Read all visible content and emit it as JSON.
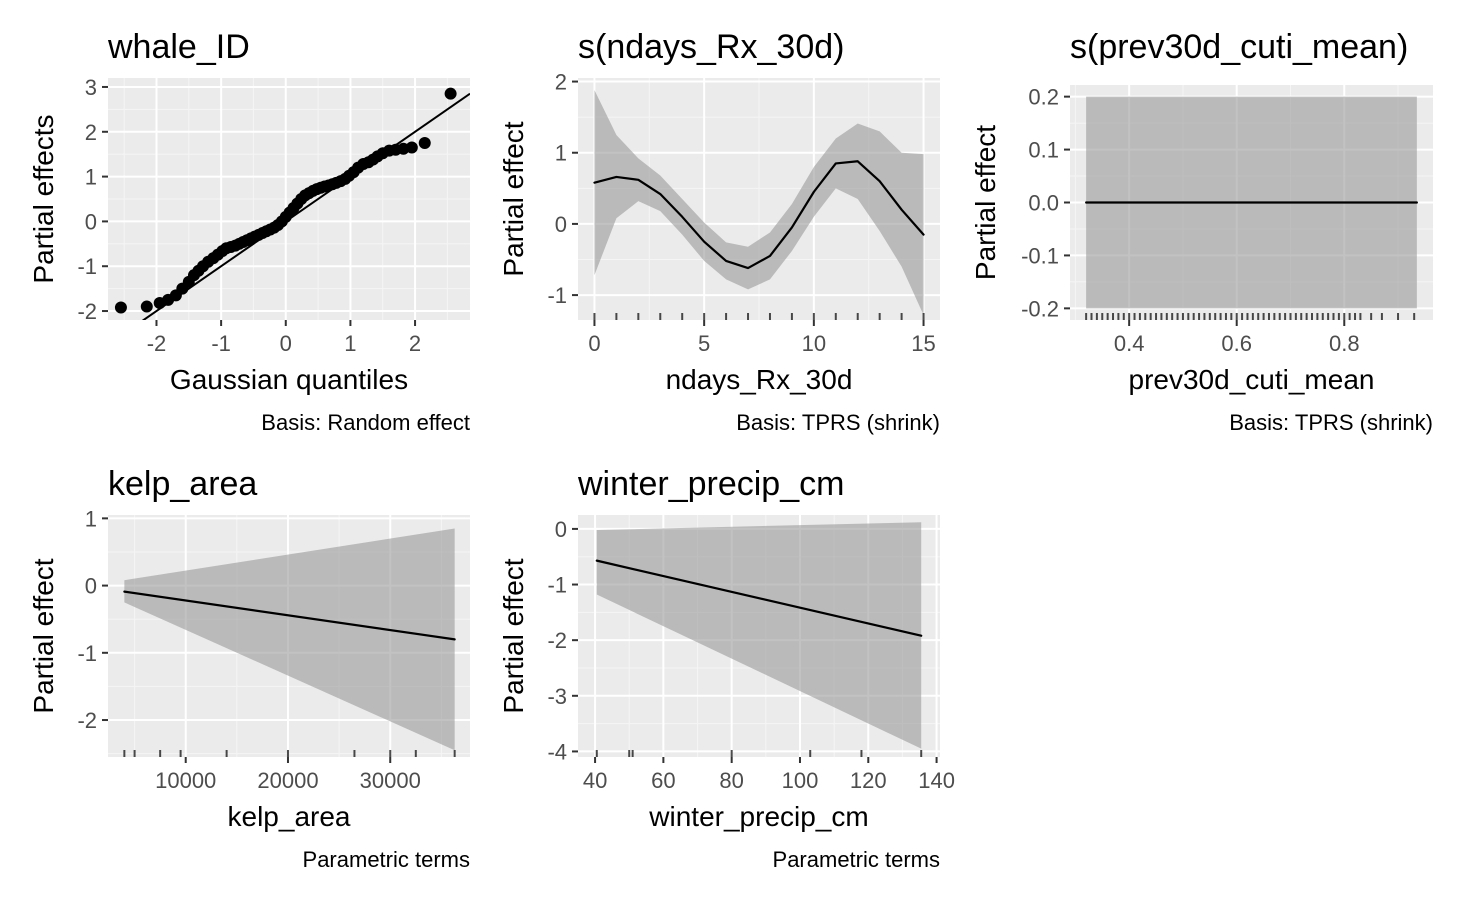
{
  "chart_data": [
    {
      "type": "scatter",
      "title": "whale_ID",
      "xlabel": "Gaussian quantiles",
      "ylabel": "Partial effects",
      "caption": "Basis: Random effect",
      "xlim": [
        -2.75,
        2.85
      ],
      "ylim": [
        -2.2,
        3.2
      ],
      "xticks": [
        -2,
        -1,
        0,
        1,
        2
      ],
      "yticks": [
        -2,
        -1,
        0,
        1,
        2,
        3
      ],
      "reference_line": {
        "intercept": 0.0,
        "slope": 1.0
      },
      "x": [
        -2.55,
        -2.15,
        -1.95,
        -1.82,
        -1.7,
        -1.6,
        -1.5,
        -1.42,
        -1.35,
        -1.28,
        -1.2,
        -1.12,
        -1.05,
        -0.98,
        -0.92,
        -0.85,
        -0.78,
        -0.72,
        -0.66,
        -0.6,
        -0.54,
        -0.48,
        -0.42,
        -0.36,
        -0.3,
        -0.24,
        -0.18,
        -0.12,
        -0.06,
        0.0,
        0.06,
        0.12,
        0.18,
        0.24,
        0.3,
        0.36,
        0.42,
        0.48,
        0.54,
        0.6,
        0.66,
        0.72,
        0.78,
        0.85,
        0.92,
        0.98,
        1.05,
        1.12,
        1.2,
        1.28,
        1.35,
        1.42,
        1.5,
        1.6,
        1.7,
        1.82,
        1.95,
        2.15,
        2.55
      ],
      "y": [
        -1.92,
        -1.9,
        -1.82,
        -1.75,
        -1.65,
        -1.5,
        -1.35,
        -1.2,
        -1.1,
        -1.0,
        -0.9,
        -0.82,
        -0.74,
        -0.66,
        -0.6,
        -0.57,
        -0.54,
        -0.5,
        -0.46,
        -0.42,
        -0.38,
        -0.34,
        -0.3,
        -0.26,
        -0.22,
        -0.18,
        -0.14,
        -0.08,
        0.0,
        0.1,
        0.2,
        0.3,
        0.4,
        0.5,
        0.58,
        0.63,
        0.68,
        0.72,
        0.75,
        0.78,
        0.8,
        0.83,
        0.86,
        0.9,
        0.95,
        1.02,
        1.1,
        1.2,
        1.28,
        1.32,
        1.38,
        1.45,
        1.52,
        1.58,
        1.6,
        1.62,
        1.65,
        1.75,
        2.85
      ]
    },
    {
      "type": "line",
      "title": "s(ndays_Rx_30d)",
      "xlabel": "ndays_Rx_30d",
      "ylabel": "Partial effect",
      "caption": "Basis: TPRS (shrink)",
      "xlim": [
        -0.75,
        15.75
      ],
      "ylim": [
        -1.35,
        2.05
      ],
      "xticks": [
        0,
        5,
        10,
        15
      ],
      "yticks": [
        -1,
        0,
        1,
        2
      ],
      "x": [
        0,
        1,
        2,
        3,
        4,
        5,
        6,
        7,
        8,
        9,
        10,
        11,
        12,
        13,
        14,
        15
      ],
      "y": [
        0.58,
        0.66,
        0.62,
        0.42,
        0.1,
        -0.25,
        -0.52,
        -0.62,
        -0.45,
        -0.05,
        0.45,
        0.85,
        0.88,
        0.6,
        0.2,
        -0.15
      ],
      "lower": [
        -0.72,
        0.08,
        0.32,
        0.18,
        -0.15,
        -0.52,
        -0.78,
        -0.92,
        -0.78,
        -0.38,
        0.1,
        0.5,
        0.35,
        -0.1,
        -0.6,
        -1.28
      ],
      "upper": [
        1.88,
        1.25,
        0.92,
        0.68,
        0.35,
        0.02,
        -0.26,
        -0.32,
        -0.12,
        0.28,
        0.8,
        1.2,
        1.41,
        1.3,
        1.0,
        0.98
      ],
      "rug": [
        0,
        1,
        2,
        3,
        4,
        5,
        6,
        7,
        8,
        9,
        10,
        11,
        12,
        13,
        14,
        15
      ]
    },
    {
      "type": "line",
      "title": "s(prev30d_cuti_mean)",
      "xlabel": "prev30d_cuti_mean",
      "ylabel": "Partial effect",
      "caption": "Basis: TPRS (shrink)",
      "xlim": [
        0.29,
        0.965
      ],
      "ylim": [
        -0.222,
        0.222
      ],
      "xticks": [
        0.4,
        0.6,
        0.8
      ],
      "yticks": [
        -0.2,
        -0.1,
        0.0,
        0.1,
        0.2
      ],
      "xtick_labels": [
        "0.4",
        "0.6",
        "0.8"
      ],
      "ytick_labels": [
        "-0.2",
        "-0.1",
        "0.0",
        "0.1",
        "0.2"
      ],
      "x": [
        0.32,
        0.935
      ],
      "y": [
        0.0,
        0.0
      ],
      "lower": [
        -0.2,
        -0.2
      ],
      "upper": [
        0.2,
        0.2
      ],
      "rug": [
        0.32,
        0.33,
        0.34,
        0.35,
        0.36,
        0.37,
        0.38,
        0.39,
        0.4,
        0.41,
        0.42,
        0.43,
        0.44,
        0.45,
        0.46,
        0.47,
        0.48,
        0.49,
        0.5,
        0.51,
        0.52,
        0.53,
        0.54,
        0.55,
        0.56,
        0.57,
        0.58,
        0.59,
        0.6,
        0.61,
        0.62,
        0.63,
        0.64,
        0.65,
        0.66,
        0.67,
        0.68,
        0.69,
        0.7,
        0.71,
        0.72,
        0.73,
        0.74,
        0.75,
        0.76,
        0.77,
        0.78,
        0.79,
        0.8,
        0.81,
        0.82,
        0.83,
        0.85,
        0.87,
        0.9,
        0.93
      ]
    },
    {
      "type": "line",
      "title": "kelp_area",
      "xlabel": "kelp_area",
      "ylabel": "Partial effect",
      "caption": "Parametric terms",
      "xlim": [
        2400,
        37800
      ],
      "ylim": [
        -2.55,
        1.05
      ],
      "xticks": [
        10000,
        20000,
        30000
      ],
      "yticks": [
        -2,
        -1,
        0,
        1
      ],
      "x": [
        4000,
        36300
      ],
      "y": [
        -0.09,
        -0.8
      ],
      "lower": [
        -0.25,
        -2.45
      ],
      "upper": [
        0.08,
        0.85
      ],
      "rug": [
        4000,
        5000,
        7500,
        9500,
        14000,
        20000,
        26500,
        30000,
        32500,
        36300
      ]
    },
    {
      "type": "line",
      "title": "winter_precip_cm",
      "xlabel": "winter_precip_cm",
      "ylabel": "Partial effect",
      "caption": "Parametric terms",
      "xlim": [
        35,
        141
      ],
      "ylim": [
        -4.1,
        0.25
      ],
      "xticks": [
        40,
        60,
        80,
        100,
        120,
        140
      ],
      "yticks": [
        -4,
        -3,
        -2,
        -1,
        0
      ],
      "x": [
        40.5,
        135.5
      ],
      "y": [
        -0.57,
        -1.92
      ],
      "lower": [
        -1.18,
        -3.95
      ],
      "upper": [
        -0.02,
        0.12
      ],
      "rug": [
        40.5,
        50,
        51,
        80,
        103,
        118,
        135.5
      ]
    }
  ]
}
